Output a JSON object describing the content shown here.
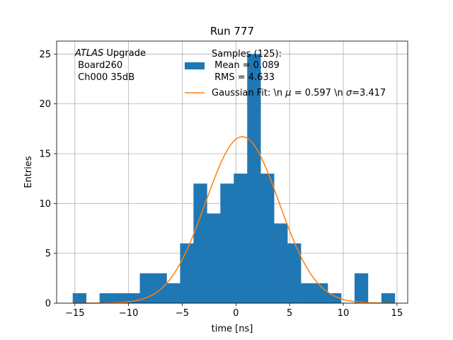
{
  "chart_data": {
    "type": "bar",
    "title": "Run 777",
    "xlabel": "time [ns]",
    "ylabel": "Entries",
    "xlim": [
      -16.7,
      16.0
    ],
    "ylim": [
      0,
      26.3
    ],
    "grid": true,
    "xticks": [
      -15,
      -10,
      -5,
      0,
      5,
      10,
      15
    ],
    "xtick_labels": [
      "−15",
      "−10",
      "−5",
      "0",
      "5",
      "10",
      "15"
    ],
    "yticks": [
      0,
      5,
      10,
      15,
      20,
      25
    ],
    "ytick_labels": [
      "0",
      "5",
      "10",
      "15",
      "20",
      "25"
    ],
    "bin_width": 1.25,
    "bin_edges_start": -15.2,
    "counts": [
      1,
      0,
      1,
      1,
      1,
      3,
      3,
      2,
      6,
      12,
      9,
      12,
      13,
      25,
      13,
      8,
      6,
      2,
      2,
      1,
      0,
      3,
      0,
      1
    ],
    "histogram_color": "#1f77b4",
    "fit": {
      "mu": 0.597,
      "sigma": 3.417,
      "amplitude": 16.7,
      "x_range": [
        -15.2,
        14.8
      ],
      "color": "#ff7f0e"
    },
    "legend": {
      "location": "top-right",
      "samples_label": "Samples (125):",
      "mean_label": " Mean = 0.089",
      "rms_label": " RMS = 4.633",
      "fit_label_prefix": "Gaussian Fit: \\n ",
      "mu_symbol": "μ",
      "mu_value": " = 0.597 \\n ",
      "sigma_symbol": "σ",
      "sigma_value": "=3.417"
    },
    "annotation": {
      "experiment": "ATLAS",
      "experiment_suffix": " Upgrade",
      "board": " Board260",
      "channel": " Ch000 35dB"
    }
  }
}
